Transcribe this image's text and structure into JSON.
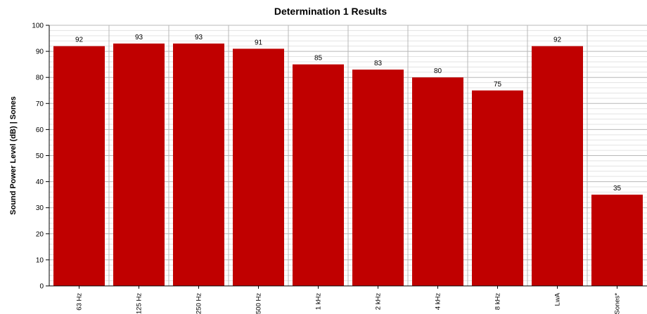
{
  "chart_data": {
    "type": "bar",
    "title": "Determination 1 Results",
    "xlabel": "",
    "ylabel": "Sound Power Level (dB) | Sones",
    "ylim": [
      0,
      100
    ],
    "ytick_step": 10,
    "ytick_labels": [
      "0",
      "10",
      "20",
      "30",
      "40",
      "50",
      "60",
      "70",
      "80",
      "90",
      "100"
    ],
    "categories": [
      "63 Hz",
      "125 Hz",
      "250 Hz",
      "500 Hz",
      "1 kHz",
      "2 kHz",
      "4 kHz",
      "8 kHz",
      "LwA",
      "Sones*"
    ],
    "values": [
      92,
      93,
      93,
      91,
      85,
      83,
      80,
      75,
      92,
      35
    ],
    "grid": true,
    "bar_color": "#c00000"
  }
}
